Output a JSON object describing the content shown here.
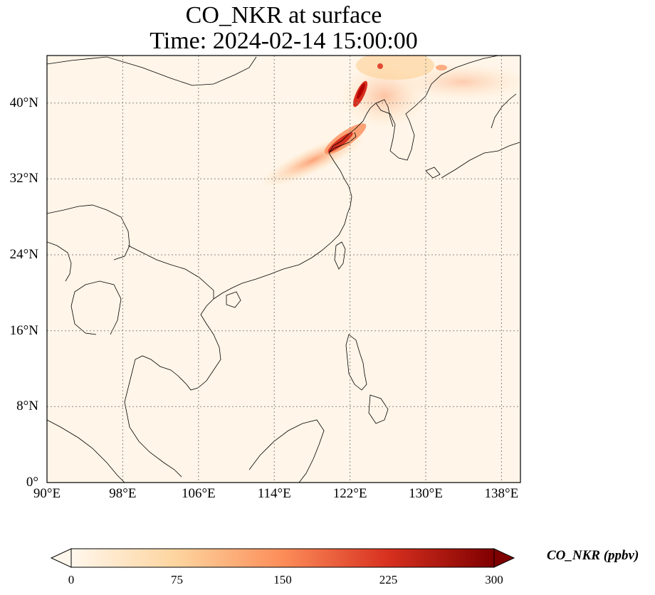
{
  "title": "CO_NKR at surface",
  "subtitle": "Time: 2024-02-14 15:00:00",
  "axes": {
    "lon_ticks": [
      "90°E",
      "98°E",
      "106°E",
      "114°E",
      "122°E",
      "130°E",
      "138°E"
    ],
    "lat_ticks": [
      "0°",
      "8°N",
      "16°N",
      "24°N",
      "32°N",
      "40°N"
    ],
    "lon_range": [
      90,
      140
    ],
    "lat_range": [
      0,
      45
    ],
    "gridlines": "dotted gray"
  },
  "colorbar": {
    "label": "CO_NKR (ppbv)",
    "ticks": [
      "0",
      "75",
      "150",
      "225",
      "300"
    ],
    "range": [
      0,
      300
    ],
    "colormap": "OrRd",
    "extend": "both",
    "colors": [
      "#fff7ec",
      "#fdd49e",
      "#fc8d59",
      "#d7301f",
      "#7f0000"
    ]
  },
  "map": {
    "background_color": "#fff5e8",
    "coastline_color": "#000000",
    "plume_region": "Bohai Sea / North China coast to Korea",
    "max_concentration_ppbv": 300
  }
}
